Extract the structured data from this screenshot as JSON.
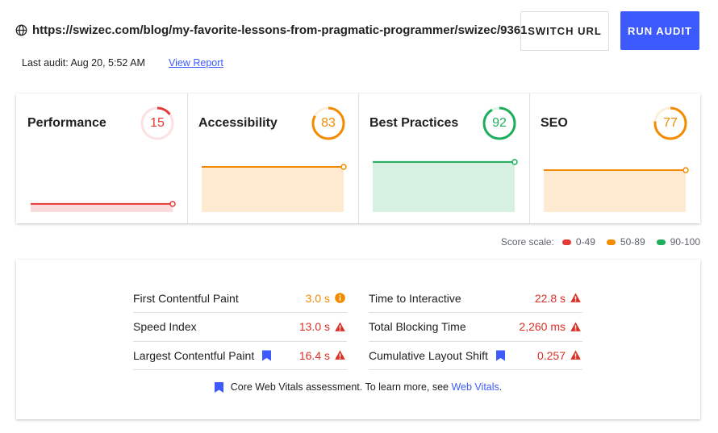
{
  "header": {
    "url": "https://swizec.com/blog/my-favorite-lessons-from-pragmatic-programmer/swizec/9361",
    "buttons": [
      "SWITCH URL",
      "RUN AUDIT"
    ],
    "last_audit": "Last audit: Aug 20, 5:52 AM",
    "report_link": "View Report"
  },
  "scores": [
    {
      "label": "Performance",
      "score": 15,
      "color": "#e53935"
    },
    {
      "label": "Accessibility",
      "score": 83,
      "color": "#f28b00"
    },
    {
      "label": "Best Practices",
      "score": 92,
      "color": "#1eae5b"
    },
    {
      "label": "SEO",
      "score": 77,
      "color": "#f28b00"
    }
  ],
  "score_scale": {
    "label": "Score scale:",
    "ranges": [
      {
        "label": "0-49",
        "color": "#e53935"
      },
      {
        "label": "50-89",
        "color": "#f28b00"
      },
      {
        "label": "90-100",
        "color": "#1eae5b"
      }
    ]
  },
  "metrics": [
    {
      "label": "First Contentful Paint",
      "value": "3.0 s",
      "status": "average",
      "core_web_vital": false
    },
    {
      "label": "Speed Index",
      "value": "13.0 s",
      "status": "fail",
      "core_web_vital": false
    },
    {
      "label": "Largest Contentful Paint",
      "value": "16.4 s",
      "status": "fail",
      "core_web_vital": true
    },
    {
      "label": "Time to Interactive",
      "value": "22.8 s",
      "status": "fail",
      "core_web_vital": false
    },
    {
      "label": "Total Blocking Time",
      "value": "2,260 ms",
      "status": "fail",
      "core_web_vital": false
    },
    {
      "label": "Cumulative Layout Shift",
      "value": "0.257",
      "status": "fail",
      "core_web_vital": true
    }
  ],
  "footer": {
    "text": "Core Web Vitals assessment. To learn more, see",
    "link": "Web Vitals",
    "end": "."
  }
}
